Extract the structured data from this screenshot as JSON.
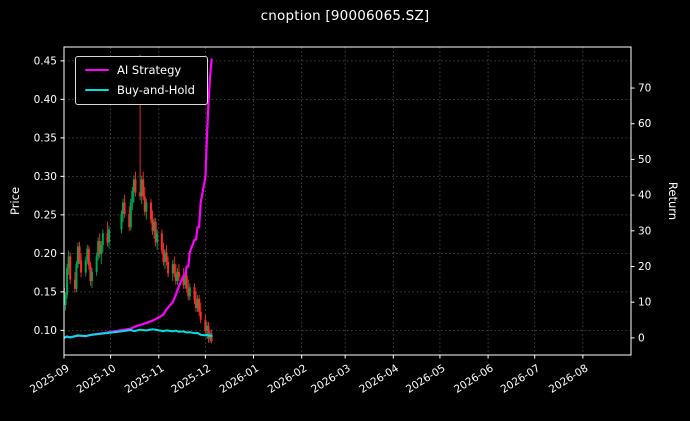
{
  "chart_data": {
    "type": "candlestick+line",
    "title": "cnoption [90006065.SZ]",
    "background": "#000000",
    "text_color": "#ffffff",
    "grid": {
      "show": true,
      "style": "dotted",
      "color": "#555555"
    },
    "x_axis": {
      "range": [
        "2025-09-01",
        "2026-09-01"
      ],
      "ticks": [
        "2025-09",
        "2025-10",
        "2025-11",
        "2025-12",
        "2026-01",
        "2026-02",
        "2026-03",
        "2026-04",
        "2026-05",
        "2026-06",
        "2026-07",
        "2026-08"
      ]
    },
    "price_axis": {
      "label": "Price",
      "ylim": [
        0.068,
        0.468
      ],
      "ticks": [
        0.1,
        0.15,
        0.2,
        0.25,
        0.3,
        0.35,
        0.4,
        0.45
      ],
      "tick_labels": [
        "0.10",
        "0.15",
        "0.20",
        "0.25",
        "0.30",
        "0.35",
        "0.40",
        "0.45"
      ]
    },
    "return_axis": {
      "label": "Return",
      "ylim": [
        -4.8,
        81.5
      ],
      "ticks": [
        0,
        10,
        20,
        30,
        40,
        50,
        60,
        70
      ]
    },
    "legend": [
      {
        "label": "AI Strategy",
        "color": "#ff00ff"
      },
      {
        "label": "Buy-and-Hold",
        "color": "#00e0e0"
      }
    ],
    "candles": {
      "up_color": "#00a651",
      "down_color": "#ff2a2a",
      "columns": [
        "date",
        "open",
        "high",
        "low",
        "close"
      ],
      "data": [
        [
          "2025-09-01",
          0.155,
          0.162,
          0.128,
          0.133
        ],
        [
          "2025-09-02",
          0.133,
          0.15,
          0.126,
          0.146
        ],
        [
          "2025-09-03",
          0.146,
          0.186,
          0.141,
          0.181
        ],
        [
          "2025-09-04",
          0.181,
          0.204,
          0.172,
          0.196
        ],
        [
          "2025-09-05",
          0.196,
          0.201,
          0.16,
          0.166
        ],
        [
          "2025-09-08",
          0.166,
          0.176,
          0.149,
          0.154
        ],
        [
          "2025-09-09",
          0.154,
          0.19,
          0.15,
          0.186
        ],
        [
          "2025-09-10",
          0.186,
          0.214,
          0.181,
          0.209
        ],
        [
          "2025-09-11",
          0.209,
          0.215,
          0.186,
          0.191
        ],
        [
          "2025-09-12",
          0.191,
          0.199,
          0.169,
          0.175
        ],
        [
          "2025-09-15",
          0.175,
          0.196,
          0.17,
          0.191
        ],
        [
          "2025-09-16",
          0.191,
          0.211,
          0.186,
          0.206
        ],
        [
          "2025-09-17",
          0.206,
          0.21,
          0.179,
          0.184
        ],
        [
          "2025-09-18",
          0.184,
          0.189,
          0.158,
          0.164
        ],
        [
          "2025-09-19",
          0.164,
          0.181,
          0.155,
          0.176
        ],
        [
          "2025-09-22",
          0.176,
          0.201,
          0.171,
          0.196
        ],
        [
          "2025-09-23",
          0.196,
          0.221,
          0.191,
          0.216
        ],
        [
          "2025-09-24",
          0.216,
          0.226,
          0.194,
          0.199
        ],
        [
          "2025-09-25",
          0.199,
          0.216,
          0.186,
          0.211
        ],
        [
          "2025-09-26",
          0.211,
          0.231,
          0.201,
          0.226
        ],
        [
          "2025-09-29",
          0.226,
          0.241,
          0.209,
          0.214
        ],
        [
          "2025-09-30",
          0.214,
          0.236,
          0.206,
          0.231
        ],
        [
          "2025-10-08",
          0.231,
          0.256,
          0.226,
          0.251
        ],
        [
          "2025-10-09",
          0.251,
          0.271,
          0.241,
          0.266
        ],
        [
          "2025-10-10",
          0.266,
          0.276,
          0.246,
          0.251
        ],
        [
          "2025-10-13",
          0.251,
          0.261,
          0.229,
          0.234
        ],
        [
          "2025-10-14",
          0.234,
          0.271,
          0.23,
          0.266
        ],
        [
          "2025-10-15",
          0.266,
          0.286,
          0.256,
          0.281
        ],
        [
          "2025-10-16",
          0.281,
          0.301,
          0.266,
          0.296
        ],
        [
          "2025-10-17",
          0.296,
          0.306,
          0.274,
          0.279
        ],
        [
          "2025-10-20",
          0.279,
          0.458,
          0.269,
          0.274
        ],
        [
          "2025-10-21",
          0.274,
          0.301,
          0.264,
          0.296
        ],
        [
          "2025-10-22",
          0.296,
          0.306,
          0.269,
          0.274
        ],
        [
          "2025-10-23",
          0.274,
          0.286,
          0.249,
          0.254
        ],
        [
          "2025-10-24",
          0.254,
          0.271,
          0.244,
          0.266
        ],
        [
          "2025-10-27",
          0.266,
          0.271,
          0.239,
          0.244
        ],
        [
          "2025-10-28",
          0.244,
          0.256,
          0.224,
          0.229
        ],
        [
          "2025-10-29",
          0.229,
          0.246,
          0.219,
          0.241
        ],
        [
          "2025-10-30",
          0.241,
          0.246,
          0.209,
          0.214
        ],
        [
          "2025-10-31",
          0.214,
          0.231,
          0.204,
          0.226
        ],
        [
          "2025-11-03",
          0.226,
          0.231,
          0.199,
          0.204
        ],
        [
          "2025-11-04",
          0.204,
          0.214,
          0.184,
          0.189
        ],
        [
          "2025-11-05",
          0.189,
          0.206,
          0.179,
          0.201
        ],
        [
          "2025-11-06",
          0.201,
          0.211,
          0.184,
          0.189
        ],
        [
          "2025-11-07",
          0.189,
          0.196,
          0.169,
          0.174
        ],
        [
          "2025-11-10",
          0.174,
          0.191,
          0.164,
          0.186
        ],
        [
          "2025-11-11",
          0.186,
          0.196,
          0.169,
          0.174
        ],
        [
          "2025-11-12",
          0.174,
          0.186,
          0.159,
          0.164
        ],
        [
          "2025-11-13",
          0.164,
          0.181,
          0.159,
          0.176
        ],
        [
          "2025-11-14",
          0.176,
          0.186,
          0.164,
          0.169
        ],
        [
          "2025-11-17",
          0.169,
          0.181,
          0.154,
          0.159
        ],
        [
          "2025-11-18",
          0.159,
          0.176,
          0.154,
          0.171
        ],
        [
          "2025-11-19",
          0.171,
          0.176,
          0.149,
          0.154
        ],
        [
          "2025-11-20",
          0.154,
          0.166,
          0.139,
          0.144
        ],
        [
          "2025-11-21",
          0.144,
          0.161,
          0.139,
          0.156
        ],
        [
          "2025-11-24",
          0.156,
          0.161,
          0.134,
          0.139
        ],
        [
          "2025-11-25",
          0.139,
          0.151,
          0.124,
          0.129
        ],
        [
          "2025-11-26",
          0.129,
          0.146,
          0.124,
          0.141
        ],
        [
          "2025-11-27",
          0.141,
          0.146,
          0.119,
          0.124
        ],
        [
          "2025-11-28",
          0.124,
          0.136,
          0.109,
          0.114
        ],
        [
          "2025-12-01",
          0.114,
          0.121,
          0.094,
          0.099
        ],
        [
          "2025-12-02",
          0.099,
          0.111,
          0.089,
          0.106
        ],
        [
          "2025-12-03",
          0.106,
          0.111,
          0.084,
          0.089
        ],
        [
          "2025-12-04",
          0.089,
          0.101,
          0.084,
          0.096
        ],
        [
          "2025-12-05",
          0.096,
          0.101,
          0.083,
          0.086
        ]
      ]
    },
    "series": [
      {
        "name": "AI Strategy",
        "color": "#ff00ff",
        "axis": "return",
        "width": 2.2,
        "points": [
          [
            "2025-09-01",
            0.0
          ],
          [
            "2025-09-03",
            0.3
          ],
          [
            "2025-09-05",
            0.2
          ],
          [
            "2025-09-10",
            0.6
          ],
          [
            "2025-09-15",
            0.5
          ],
          [
            "2025-09-19",
            0.9
          ],
          [
            "2025-09-24",
            1.2
          ],
          [
            "2025-09-30",
            1.6
          ],
          [
            "2025-10-09",
            2.2
          ],
          [
            "2025-10-14",
            2.6
          ],
          [
            "2025-10-17",
            3.2
          ],
          [
            "2025-10-20",
            3.6
          ],
          [
            "2025-10-24",
            4.2
          ],
          [
            "2025-10-28",
            4.8
          ],
          [
            "2025-10-31",
            5.5
          ],
          [
            "2025-11-04",
            6.5
          ],
          [
            "2025-11-06",
            8.0
          ],
          [
            "2025-11-10",
            10.0
          ],
          [
            "2025-11-12",
            12.0
          ],
          [
            "2025-11-14",
            14.5
          ],
          [
            "2025-11-17",
            17.5
          ],
          [
            "2025-11-18",
            17.5
          ],
          [
            "2025-11-19",
            20.0
          ],
          [
            "2025-11-20",
            20.0
          ],
          [
            "2025-11-21",
            24.0
          ],
          [
            "2025-11-24",
            27.5
          ],
          [
            "2025-11-25",
            27.5
          ],
          [
            "2025-11-26",
            31.0
          ],
          [
            "2025-11-27",
            31.0
          ],
          [
            "2025-11-28",
            38.0
          ],
          [
            "2025-12-01",
            45.0
          ],
          [
            "2025-12-02",
            56.0
          ],
          [
            "2025-12-03",
            66.0
          ],
          [
            "2025-12-04",
            73.0
          ],
          [
            "2025-12-05",
            78.0
          ]
        ]
      },
      {
        "name": "Buy-and-Hold",
        "color": "#00e0e0",
        "axis": "return",
        "width": 2.0,
        "points": [
          [
            "2025-09-01",
            0.0
          ],
          [
            "2025-09-03",
            0.4
          ],
          [
            "2025-09-05",
            0.1
          ],
          [
            "2025-09-10",
            0.7
          ],
          [
            "2025-09-15",
            0.5
          ],
          [
            "2025-09-19",
            0.9
          ],
          [
            "2025-09-24",
            1.1
          ],
          [
            "2025-09-30",
            1.4
          ],
          [
            "2025-10-09",
            1.9
          ],
          [
            "2025-10-14",
            2.2
          ],
          [
            "2025-10-16",
            1.9
          ],
          [
            "2025-10-20",
            2.3
          ],
          [
            "2025-10-24",
            2.1
          ],
          [
            "2025-10-28",
            2.4
          ],
          [
            "2025-10-31",
            2.2
          ],
          [
            "2025-11-04",
            1.9
          ],
          [
            "2025-11-06",
            2.1
          ],
          [
            "2025-11-10",
            1.8
          ],
          [
            "2025-11-12",
            2.0
          ],
          [
            "2025-11-14",
            1.7
          ],
          [
            "2025-11-17",
            1.8
          ],
          [
            "2025-11-19",
            1.5
          ],
          [
            "2025-11-21",
            1.6
          ],
          [
            "2025-11-24",
            1.3
          ],
          [
            "2025-11-26",
            1.4
          ],
          [
            "2025-11-27",
            1.1
          ],
          [
            "2025-11-28",
            0.9
          ],
          [
            "2025-12-01",
            0.7
          ],
          [
            "2025-12-02",
            0.9
          ],
          [
            "2025-12-03",
            0.6
          ],
          [
            "2025-12-04",
            0.7
          ],
          [
            "2025-12-05",
            0.5
          ]
        ]
      }
    ]
  }
}
